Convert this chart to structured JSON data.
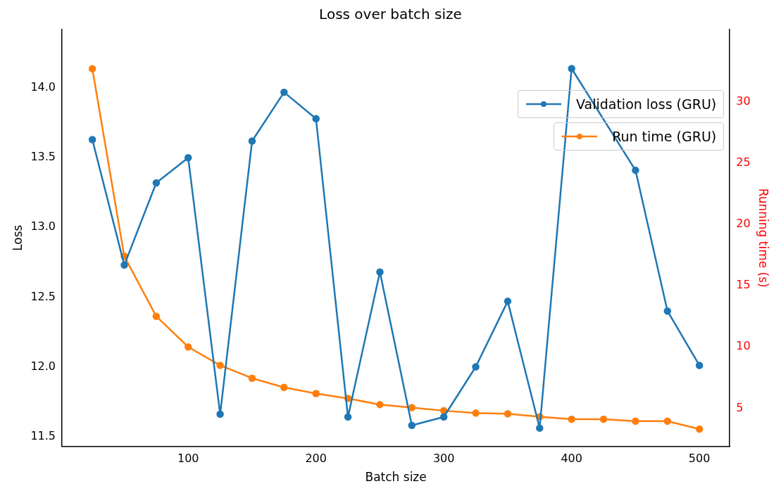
{
  "chart_data": {
    "type": "line",
    "title": "Loss over batch size",
    "xlabel": "Batch size",
    "ylabel": "Loss",
    "y2label": "Running time (s)",
    "x": [
      25,
      50,
      75,
      100,
      125,
      150,
      175,
      200,
      225,
      250,
      275,
      300,
      325,
      350,
      375,
      400,
      425,
      450,
      475,
      500
    ],
    "series": [
      {
        "name": "Validation loss (GRU)",
        "color": "#1f77b4",
        "values": [
          13.63,
          12.73,
          13.32,
          13.5,
          11.66,
          13.62,
          13.97,
          13.78,
          11.64,
          12.68,
          11.58,
          11.64,
          12.0,
          12.47,
          11.56,
          14.14,
          null,
          13.41,
          12.4,
          12.01
        ]
      },
      {
        "name": "Run time (GRU)",
        "color": "#ff7f0e",
        "axis": "y2",
        "values": [
          32.7,
          17.4,
          12.5,
          10.0,
          8.5,
          7.45,
          6.7,
          6.2,
          5.8,
          5.3,
          5.05,
          4.8,
          4.6,
          4.55,
          4.3,
          4.1,
          4.1,
          3.95,
          3.95,
          3.3
        ]
      }
    ],
    "xlim": [
      1.25,
      523.75
    ],
    "xticks": [
      100,
      200,
      300,
      400,
      500
    ],
    "ylim": [
      11.43,
      14.42
    ],
    "yticks": [
      11.5,
      {
        "value": 12,
        "label": "12.0"
      },
      12.5,
      {
        "value": 13,
        "label": "13.0"
      },
      13.5,
      {
        "value": 14,
        "label": "14.0"
      }
    ],
    "y2lim": [
      1.9,
      35.9
    ],
    "y2ticks": [
      5,
      10,
      15,
      20,
      25,
      30
    ],
    "marker": "circle",
    "line_style": "solid",
    "grid": false,
    "legend": "top right"
  }
}
